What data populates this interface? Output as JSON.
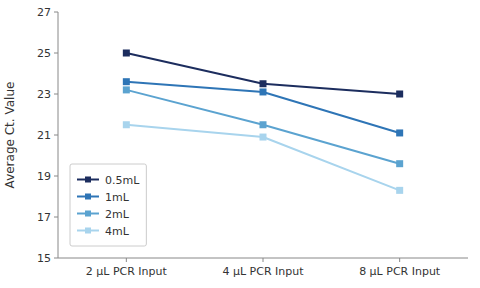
{
  "chart_data": {
    "type": "line",
    "y_label": "Average Ct. Value",
    "categories": [
      "2 μL PCR Input",
      "4 μL PCR Input",
      "8 μL PCR Input"
    ],
    "series": [
      {
        "name": "0.5mL",
        "color": "#1c2d5e",
        "marker": "square",
        "values": [
          25.0,
          23.5,
          23.0
        ]
      },
      {
        "name": "1mL",
        "color": "#2e75b6",
        "marker": "square",
        "values": [
          23.6,
          23.1,
          21.1
        ]
      },
      {
        "name": "2mL",
        "color": "#5ba3d0",
        "marker": "square",
        "values": [
          23.2,
          21.5,
          19.6
        ]
      },
      {
        "name": "4mL",
        "color": "#a8d4ed",
        "marker": "square",
        "values": [
          21.5,
          20.9,
          18.3
        ]
      }
    ],
    "ylim": [
      15,
      27
    ],
    "yticks": [
      15,
      17,
      19,
      21,
      23,
      25,
      27
    ],
    "grid": false,
    "legend": "lower left"
  }
}
